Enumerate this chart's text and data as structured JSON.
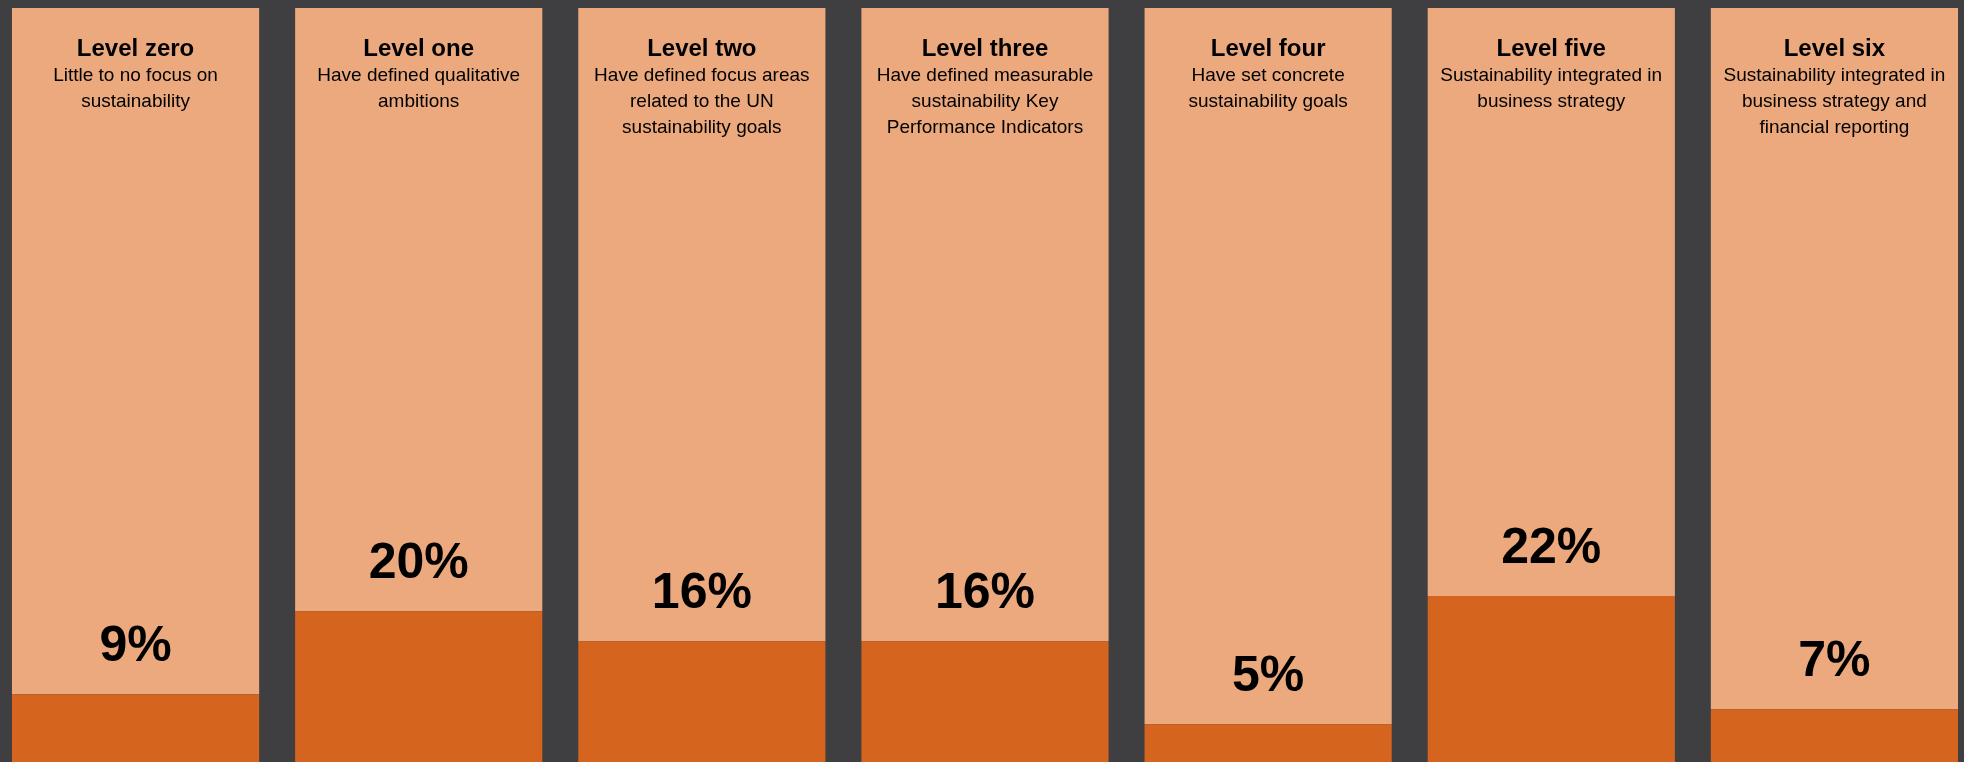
{
  "chart_data": {
    "type": "bar",
    "categories": [
      "Level zero",
      "Level one",
      "Level two",
      "Level three",
      "Level four",
      "Level five",
      "Level six"
    ],
    "stacked": true,
    "series": [
      {
        "color": "#d5641f",
        "values": [
          9,
          20,
          16,
          16,
          5,
          22,
          7
        ],
        "value_labels": [
          "9%",
          "20%",
          "16%",
          "16%",
          "5%",
          "22%",
          "7%"
        ]
      },
      {
        "color": "#eca97e",
        "values": [
          91,
          80,
          84,
          84,
          95,
          78,
          93
        ]
      }
    ],
    "ylim": [
      0,
      100
    ],
    "tick_labels": false,
    "legend": false,
    "annotations": [
      "Little to no focus on sustainability",
      "Have defined qualitative ambitions",
      "Have defined focus areas related to the UN sustainability goals",
      "Have defined measurable sustainability Key Performance Indicators",
      "Have set concrete sustainability goals",
      "Sustainability integrated in business strategy",
      "Sustainability integrated in business strategy and financial reporting"
    ]
  }
}
